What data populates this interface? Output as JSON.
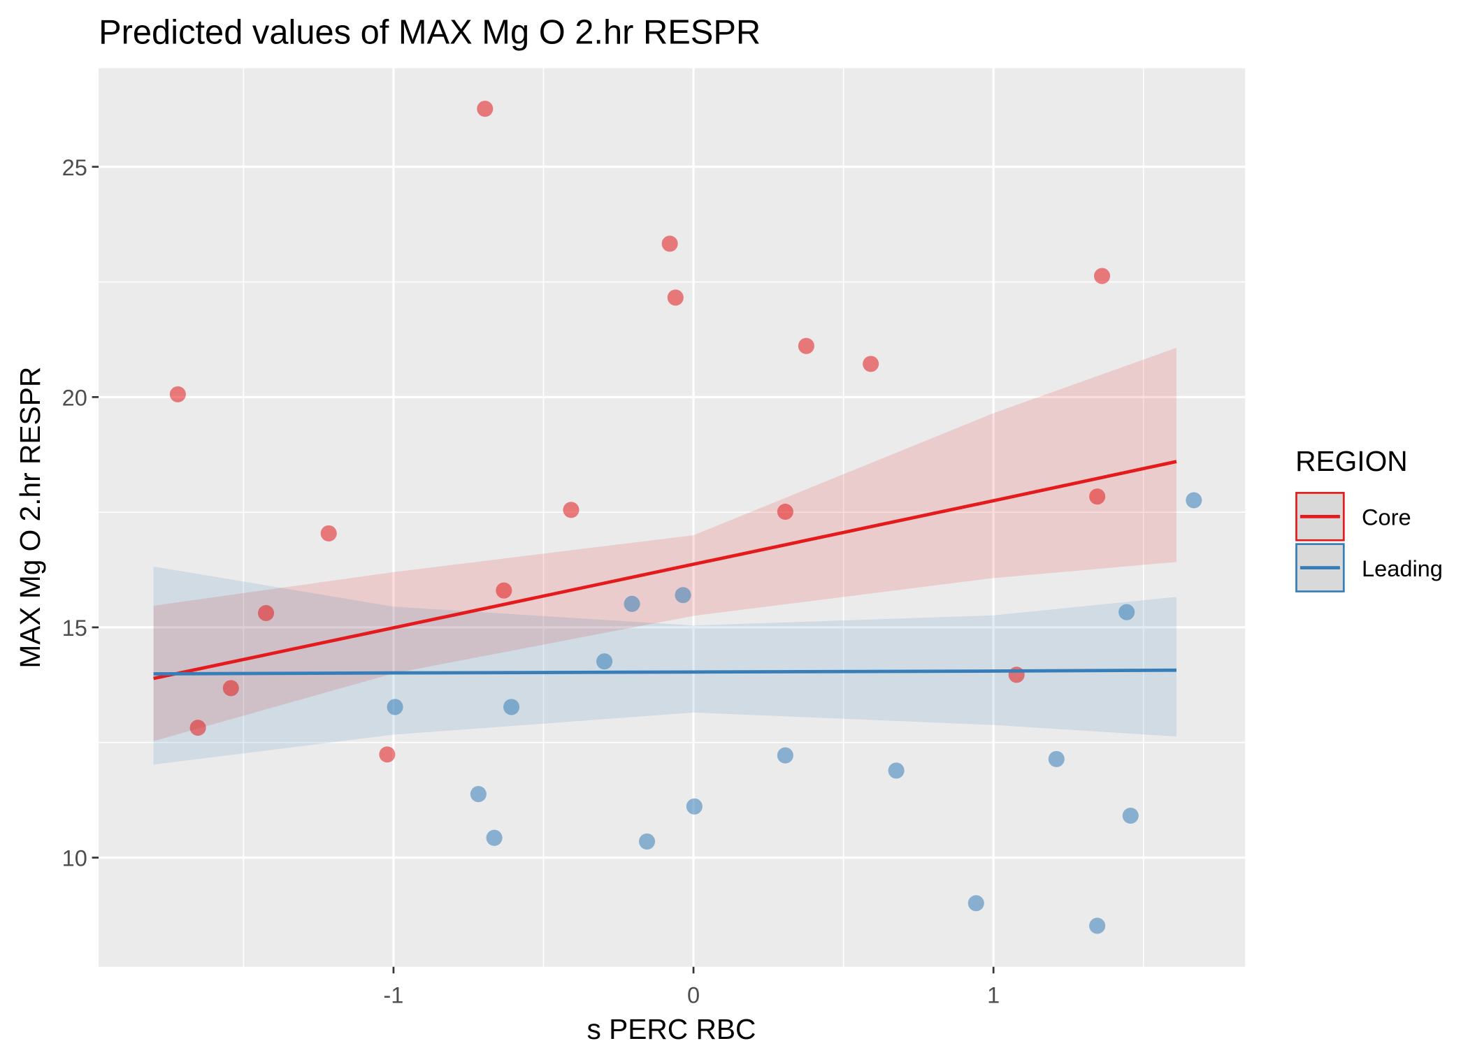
{
  "chart_data": {
    "type": "scatter",
    "title": "Predicted values of MAX Mg O 2.hr RESPR",
    "x_label": "s PERC RBC",
    "y_label": "MAX Mg O 2.hr RESPR",
    "legend_title": "REGION",
    "legend_position": "right",
    "grid": true,
    "xlim": [
      -1.983,
      1.839
    ],
    "ylim": [
      7.63,
      27.14
    ],
    "xticks": [
      -1,
      0,
      1
    ],
    "yticks": [
      10,
      15,
      20,
      25
    ],
    "series": [
      {
        "name": "Core",
        "color": "#e41a1c",
        "x": [
          -1.719,
          -1.652,
          -1.542,
          -1.425,
          -1.216,
          -1.021,
          -0.695,
          -0.632,
          -0.408,
          -0.079,
          -0.06,
          0.306,
          0.376,
          0.591,
          1.077,
          1.346,
          1.362
        ],
        "values": [
          20.06,
          12.82,
          13.68,
          15.31,
          17.04,
          12.24,
          26.26,
          15.8,
          17.55,
          23.33,
          22.16,
          17.51,
          21.11,
          20.72,
          13.97,
          17.84,
          22.63
        ],
        "fit_x": [
          -1.8,
          -1,
          0,
          1,
          1.61
        ],
        "fit": [
          13.89,
          14.99,
          16.37,
          17.75,
          18.6
        ],
        "fit_lower": [
          12.53,
          14.0,
          15.25,
          16.07,
          16.42
        ],
        "fit_upper": [
          15.47,
          16.2,
          17.0,
          19.65,
          21.07
        ]
      },
      {
        "name": "Leading",
        "color": "#377eb8",
        "x": [
          -0.995,
          -0.717,
          -0.664,
          -0.607,
          -0.297,
          -0.205,
          -0.155,
          -0.035,
          0.003,
          0.306,
          0.676,
          0.942,
          1.21,
          1.346,
          1.444,
          1.457,
          1.668
        ],
        "values": [
          13.27,
          11.38,
          10.43,
          13.27,
          14.26,
          15.51,
          10.35,
          15.7,
          11.11,
          12.22,
          11.89,
          9.01,
          12.14,
          8.52,
          15.33,
          10.91,
          17.76
        ],
        "fit_x": [
          -1.8,
          -1,
          0,
          1,
          1.61
        ],
        "fit": [
          13.99,
          14.01,
          14.03,
          14.05,
          14.07
        ],
        "fit_lower": [
          12.02,
          12.67,
          13.15,
          12.88,
          12.63
        ],
        "fit_upper": [
          16.32,
          15.45,
          15.04,
          15.26,
          15.66
        ]
      }
    ]
  }
}
